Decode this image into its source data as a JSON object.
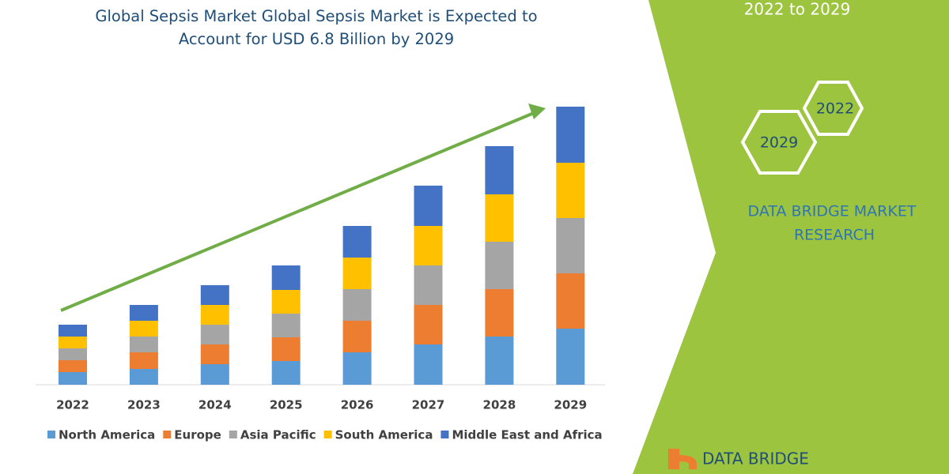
{
  "chart_data": {
    "type": "bar",
    "stacked": true,
    "title": "Global Sepsis Market Global Sepsis Market is Expected to Account for USD 6.8 Billion by 2029",
    "categories": [
      "2022",
      "2023",
      "2024",
      "2025",
      "2026",
      "2027",
      "2028",
      "2029"
    ],
    "series": [
      {
        "name": "North America",
        "color": "#5b9bd5",
        "values": [
          16,
          20,
          26,
          30,
          41,
          51,
          61,
          71
        ]
      },
      {
        "name": "Europe",
        "color": "#ed7d31",
        "values": [
          15,
          21,
          25,
          30,
          40,
          50,
          60,
          70
        ]
      },
      {
        "name": "Asia Pacific",
        "color": "#a5a5a5",
        "values": [
          15,
          20,
          25,
          30,
          40,
          50,
          60,
          70
        ]
      },
      {
        "name": "South America",
        "color": "#ffc000",
        "values": [
          15,
          20,
          25,
          30,
          40,
          50,
          60,
          70
        ]
      },
      {
        "name": "Middle East and Africa",
        "color": "#4472c4",
        "values": [
          15,
          20,
          25,
          31,
          40,
          51,
          61,
          71
        ]
      }
    ]
  },
  "period": "2022 to 2029",
  "hexagons": [
    "2022",
    "2029"
  ],
  "brand": [
    "DATA BRIDGE MARKET",
    "RESEARCH"
  ],
  "logo": "DATA BRIDGE"
}
